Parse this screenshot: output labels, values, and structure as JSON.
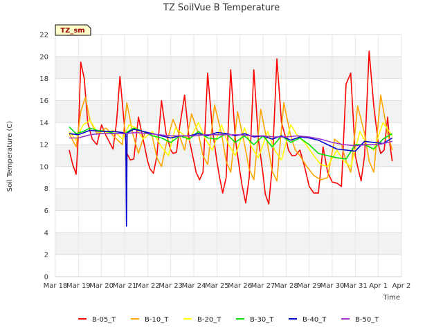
{
  "chart_data": {
    "type": "line",
    "title": "TZ SoilVue B Temperature",
    "xlabel": "Time",
    "ylabel": "Soil Temperature (C)",
    "tag": "TZ_sm",
    "ylim": [
      0,
      22
    ],
    "yticks": [
      0,
      2,
      4,
      6,
      8,
      10,
      12,
      14,
      16,
      18,
      20,
      22
    ],
    "xlim": [
      0,
      15
    ],
    "xticks": [
      "Mar 18",
      "Mar 19",
      "Mar 20",
      "Mar 21",
      "Mar 22",
      "Mar 23",
      "Mar 24",
      "Mar 25",
      "Mar 26",
      "Mar 27",
      "Mar 28",
      "Mar 29",
      "Mar 30",
      "Mar 31",
      "Apr 1",
      "Apr 2"
    ],
    "grid": true,
    "legend_position": "bottom",
    "series": [
      {
        "name": "B-05_T",
        "color": "#ff0000",
        "x": [
          0.6,
          0.75,
          0.9,
          1.0,
          1.1,
          1.25,
          1.4,
          1.6,
          1.8,
          2.0,
          2.2,
          2.4,
          2.5,
          2.65,
          2.8,
          3.0,
          3.1,
          3.25,
          3.4,
          3.6,
          3.8,
          4.0,
          4.1,
          4.25,
          4.4,
          4.6,
          4.8,
          5.0,
          5.1,
          5.25,
          5.4,
          5.6,
          5.8,
          6.0,
          6.1,
          6.25,
          6.4,
          6.6,
          6.8,
          7.0,
          7.1,
          7.25,
          7.4,
          7.6,
          7.8,
          8.0,
          8.1,
          8.25,
          8.4,
          8.6,
          8.8,
          9.0,
          9.1,
          9.25,
          9.4,
          9.6,
          9.8,
          10.0,
          10.1,
          10.25,
          10.4,
          10.6,
          10.8,
          11.0,
          11.2,
          11.4,
          11.6,
          11.8,
          12.0,
          12.2,
          12.4,
          12.6,
          12.8,
          13.0,
          13.1,
          13.25,
          13.4,
          13.6,
          13.8,
          14.0,
          14.1,
          14.25,
          14.4,
          14.5,
          14.6
        ],
        "values": [
          11.5,
          10.2,
          9.3,
          13.0,
          19.5,
          18.0,
          14.0,
          12.5,
          12.0,
          13.8,
          12.8,
          12.0,
          11.6,
          14.0,
          18.2,
          13.5,
          11.2,
          10.6,
          10.7,
          14.5,
          12.5,
          10.5,
          9.8,
          9.4,
          11.0,
          16.0,
          13.0,
          11.5,
          11.2,
          11.3,
          13.8,
          16.5,
          12.5,
          10.5,
          9.5,
          8.8,
          9.5,
          18.5,
          13.5,
          10.5,
          9.2,
          7.6,
          9.0,
          18.8,
          12.5,
          9.5,
          8.2,
          6.7,
          9.0,
          18.8,
          12.5,
          9.3,
          7.5,
          6.6,
          10.0,
          19.8,
          14.0,
          12.5,
          11.5,
          11.0,
          11.0,
          11.5,
          10.0,
          8.2,
          7.6,
          7.6,
          11.8,
          9.5,
          8.6,
          8.5,
          8.2,
          17.5,
          18.5,
          11.0,
          10.0,
          8.7,
          11.0,
          20.5,
          15.5,
          12.0,
          11.2,
          11.5,
          14.5,
          12.0,
          10.5
        ]
      },
      {
        "name": "B-10_T",
        "color": "#ffa500",
        "x": [
          0.6,
          0.9,
          1.1,
          1.3,
          1.5,
          1.8,
          2.2,
          2.6,
          2.9,
          3.1,
          3.35,
          3.6,
          3.9,
          4.2,
          4.4,
          4.6,
          4.8,
          5.1,
          5.35,
          5.6,
          5.9,
          6.2,
          6.4,
          6.6,
          6.9,
          7.2,
          7.4,
          7.6,
          7.9,
          8.2,
          8.4,
          8.6,
          8.9,
          9.2,
          9.4,
          9.6,
          9.9,
          10.2,
          10.4,
          10.6,
          10.9,
          11.2,
          11.5,
          11.8,
          12.1,
          12.4,
          12.6,
          12.8,
          13.1,
          13.4,
          13.6,
          13.8,
          14.1,
          14.4,
          14.6
        ],
        "values": [
          13.0,
          11.8,
          15.0,
          16.3,
          14.2,
          13.0,
          13.5,
          12.6,
          12.0,
          15.8,
          13.0,
          11.2,
          13.2,
          12.8,
          10.8,
          10.0,
          12.0,
          14.3,
          13.0,
          11.5,
          14.8,
          13.0,
          11.0,
          10.2,
          15.6,
          13.0,
          10.5,
          9.5,
          15.0,
          12.0,
          9.8,
          8.8,
          15.2,
          12.0,
          9.6,
          8.7,
          15.8,
          12.8,
          11.5,
          11.0,
          10.0,
          9.2,
          8.8,
          9.0,
          12.5,
          12.0,
          10.5,
          9.5,
          15.5,
          13.0,
          10.5,
          9.5,
          16.5,
          13.0,
          11.5
        ]
      },
      {
        "name": "B-20_T",
        "color": "#ffff00",
        "x": [
          0.6,
          0.9,
          1.2,
          1.5,
          1.8,
          2.1,
          2.5,
          2.9,
          3.2,
          3.5,
          3.8,
          4.2,
          4.6,
          4.9,
          5.2,
          5.5,
          5.8,
          6.2,
          6.5,
          6.8,
          7.2,
          7.5,
          7.8,
          8.2,
          8.5,
          8.8,
          9.2,
          9.5,
          9.8,
          10.2,
          10.5,
          10.8,
          11.2,
          11.5,
          11.8,
          12.2,
          12.5,
          12.8,
          13.2,
          13.5,
          13.8,
          14.2,
          14.6
        ],
        "values": [
          13.2,
          12.4,
          13.8,
          14.2,
          13.2,
          13.0,
          13.3,
          12.5,
          13.8,
          13.5,
          12.5,
          13.2,
          11.8,
          11.0,
          13.5,
          13.0,
          12.4,
          14.0,
          12.5,
          11.5,
          13.8,
          12.0,
          11.0,
          13.5,
          11.8,
          10.8,
          13.2,
          11.5,
          10.6,
          13.8,
          12.8,
          12.2,
          11.0,
          10.2,
          10.0,
          11.5,
          10.5,
          10.0,
          13.2,
          12.0,
          11.5,
          14.0,
          12.8
        ]
      },
      {
        "name": "B-30_T",
        "color": "#00dd00",
        "x": [
          0.6,
          0.9,
          1.2,
          1.5,
          1.8,
          2.2,
          2.6,
          3.0,
          3.4,
          3.8,
          4.2,
          4.6,
          5.0,
          5.4,
          5.8,
          6.2,
          6.6,
          7.0,
          7.4,
          7.8,
          8.2,
          8.6,
          9.0,
          9.4,
          9.8,
          10.2,
          10.6,
          11.0,
          11.4,
          11.8,
          12.2,
          12.6,
          13.0,
          13.4,
          13.8,
          14.2,
          14.6
        ],
        "values": [
          13.6,
          13.0,
          13.2,
          13.5,
          13.3,
          13.2,
          13.0,
          13.0,
          13.5,
          13.2,
          12.8,
          12.6,
          12.2,
          12.8,
          12.5,
          13.2,
          12.6,
          12.5,
          13.0,
          12.2,
          12.8,
          12.0,
          12.8,
          11.8,
          12.8,
          12.2,
          12.6,
          12.0,
          11.2,
          11.0,
          10.8,
          10.7,
          12.0,
          12.0,
          11.6,
          12.5,
          13.0
        ]
      },
      {
        "name": "B-40_T",
        "color": "#0000cc",
        "x": [
          0.6,
          1.0,
          1.5,
          2.0,
          2.5,
          2.9,
          3.05,
          3.08,
          3.11,
          3.15,
          3.4,
          3.8,
          4.2,
          4.6,
          5.0,
          5.4,
          5.8,
          6.2,
          6.6,
          7.0,
          7.4,
          7.8,
          8.2,
          8.6,
          9.0,
          9.4,
          9.8,
          10.2,
          10.6,
          11.0,
          11.4,
          11.8,
          12.2,
          12.6,
          13.0,
          13.4,
          13.8,
          14.2,
          14.6
        ],
        "values": [
          13.0,
          12.9,
          13.3,
          13.2,
          13.2,
          13.1,
          13.0,
          4.6,
          13.0,
          13.1,
          13.4,
          13.2,
          13.0,
          12.8,
          12.6,
          12.8,
          12.8,
          13.0,
          12.8,
          13.1,
          13.0,
          12.8,
          13.0,
          12.7,
          12.8,
          12.5,
          12.8,
          12.4,
          12.7,
          12.6,
          12.4,
          12.0,
          11.6,
          11.5,
          11.4,
          12.3,
          12.2,
          12.1,
          12.6
        ]
      },
      {
        "name": "B-50_T",
        "color": "#9933cc",
        "x": [
          0.6,
          1.0,
          1.5,
          2.0,
          2.5,
          3.0,
          3.5,
          4.0,
          4.5,
          5.0,
          5.5,
          6.0,
          6.5,
          7.0,
          7.5,
          8.0,
          8.5,
          9.0,
          9.5,
          10.0,
          10.5,
          11.0,
          11.5,
          12.0,
          12.5,
          13.0,
          13.5,
          14.0,
          14.6
        ],
        "values": [
          12.6,
          12.6,
          12.9,
          13.0,
          13.0,
          13.0,
          13.1,
          13.0,
          12.9,
          12.8,
          12.8,
          12.8,
          12.9,
          12.9,
          12.9,
          12.9,
          12.8,
          12.8,
          12.7,
          12.7,
          12.8,
          12.7,
          12.5,
          12.2,
          12.0,
          11.9,
          12.0,
          12.0,
          12.3
        ]
      }
    ]
  }
}
